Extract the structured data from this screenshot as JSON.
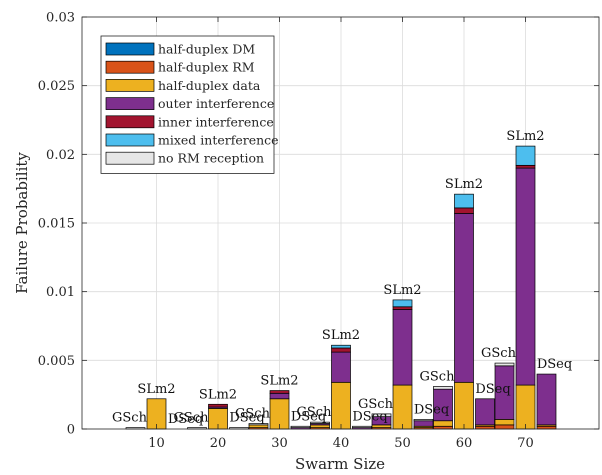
{
  "chart_data": {
    "type": "bar",
    "subtype": "grouped-stacked",
    "xlabel": "Swarm Size",
    "ylabel": "Failure Probability",
    "ylim": [
      0,
      0.03
    ],
    "yticks": [
      0,
      0.005,
      0.01,
      0.015,
      0.02,
      0.025,
      0.03
    ],
    "ytick_labels": [
      "0",
      "0.005",
      "0.01",
      "0.015",
      "0.02",
      "0.025",
      "0.03"
    ],
    "categories": [
      "10",
      "20",
      "30",
      "40",
      "50",
      "60",
      "70"
    ],
    "grid": true,
    "legend_position": "top-left",
    "groups": [
      "GSch",
      "SLm2",
      "DSeq"
    ],
    "components": [
      {
        "name": "half-duplex DM",
        "color": "#0072BD"
      },
      {
        "name": "half-duplex RM",
        "color": "#D95319"
      },
      {
        "name": "half-duplex data",
        "color": "#EDB120"
      },
      {
        "name": "outer interference",
        "color": "#7E2F8E"
      },
      {
        "name": "inner interference",
        "color": "#A2142F"
      },
      {
        "name": "mixed interference",
        "color": "#4DBEEE"
      },
      {
        "name": "no RM reception",
        "color": "#E6E6E6"
      }
    ],
    "bars": [
      {
        "category": "10",
        "group": "GSch",
        "values": [
          0,
          0,
          0,
          0,
          0,
          0,
          0.0001
        ]
      },
      {
        "category": "10",
        "group": "SLm2",
        "values": [
          0,
          0,
          0.0022,
          0,
          0,
          0,
          0
        ]
      },
      {
        "category": "10",
        "group": "DSeq",
        "values": [
          0,
          0,
          0,
          0,
          0,
          0,
          0
        ]
      },
      {
        "category": "20",
        "group": "GSch",
        "values": [
          0,
          0,
          0,
          0,
          0,
          0,
          0.0001
        ]
      },
      {
        "category": "20",
        "group": "SLm2",
        "values": [
          0,
          0,
          0.0015,
          0.0001,
          0.0002,
          0,
          0
        ]
      },
      {
        "category": "20",
        "group": "DSeq",
        "values": [
          0,
          0,
          0,
          0,
          0,
          0,
          0.0001
        ]
      },
      {
        "category": "30",
        "group": "GSch",
        "values": [
          0,
          0.0001,
          0.0002,
          0,
          0,
          0,
          0.0001
        ]
      },
      {
        "category": "30",
        "group": "SLm2",
        "values": [
          0,
          0,
          0.0022,
          0.0004,
          0.0002,
          0,
          0
        ]
      },
      {
        "category": "30",
        "group": "DSeq",
        "values": [
          0,
          0,
          0,
          0.0001,
          0,
          0,
          0.0001
        ]
      },
      {
        "category": "40",
        "group": "GSch",
        "values": [
          0,
          0.0001,
          0.0002,
          0.0001,
          0,
          0,
          0.0001
        ]
      },
      {
        "category": "40",
        "group": "SLm2",
        "values": [
          0,
          0,
          0.0034,
          0.0022,
          0.0003,
          0.0002,
          0
        ]
      },
      {
        "category": "40",
        "group": "DSeq",
        "values": [
          0,
          0,
          0,
          0.0001,
          0,
          0,
          0.0001
        ]
      },
      {
        "category": "50",
        "group": "GSch",
        "values": [
          0,
          0.0001,
          0.0002,
          0.0006,
          0,
          0,
          0.0002
        ]
      },
      {
        "category": "50",
        "group": "SLm2",
        "values": [
          0,
          0,
          0.0032,
          0.0055,
          0.0002,
          0.0005,
          0
        ]
      },
      {
        "category": "50",
        "group": "DSeq",
        "values": [
          0,
          0.0001,
          0.0001,
          0.0004,
          0,
          0,
          0.0001
        ]
      },
      {
        "category": "60",
        "group": "GSch",
        "values": [
          0,
          0.0002,
          0.0004,
          0.0023,
          0,
          0,
          0.0002
        ]
      },
      {
        "category": "60",
        "group": "SLm2",
        "values": [
          0,
          0,
          0.0034,
          0.0123,
          0.0004,
          0.001,
          0
        ]
      },
      {
        "category": "60",
        "group": "DSeq",
        "values": [
          0,
          0.0002,
          0.0001,
          0.0019,
          0,
          0,
          0
        ]
      },
      {
        "category": "70",
        "group": "GSch",
        "values": [
          0,
          0.0003,
          0.0004,
          0.0039,
          0,
          0,
          0.0002
        ]
      },
      {
        "category": "70",
        "group": "SLm2",
        "values": [
          0,
          0,
          0.0032,
          0.0158,
          0.0002,
          0.0014,
          0
        ]
      },
      {
        "category": "70",
        "group": "DSeq",
        "values": [
          0,
          0.0002,
          0.0001,
          0.0037,
          0,
          0,
          0
        ]
      }
    ]
  }
}
